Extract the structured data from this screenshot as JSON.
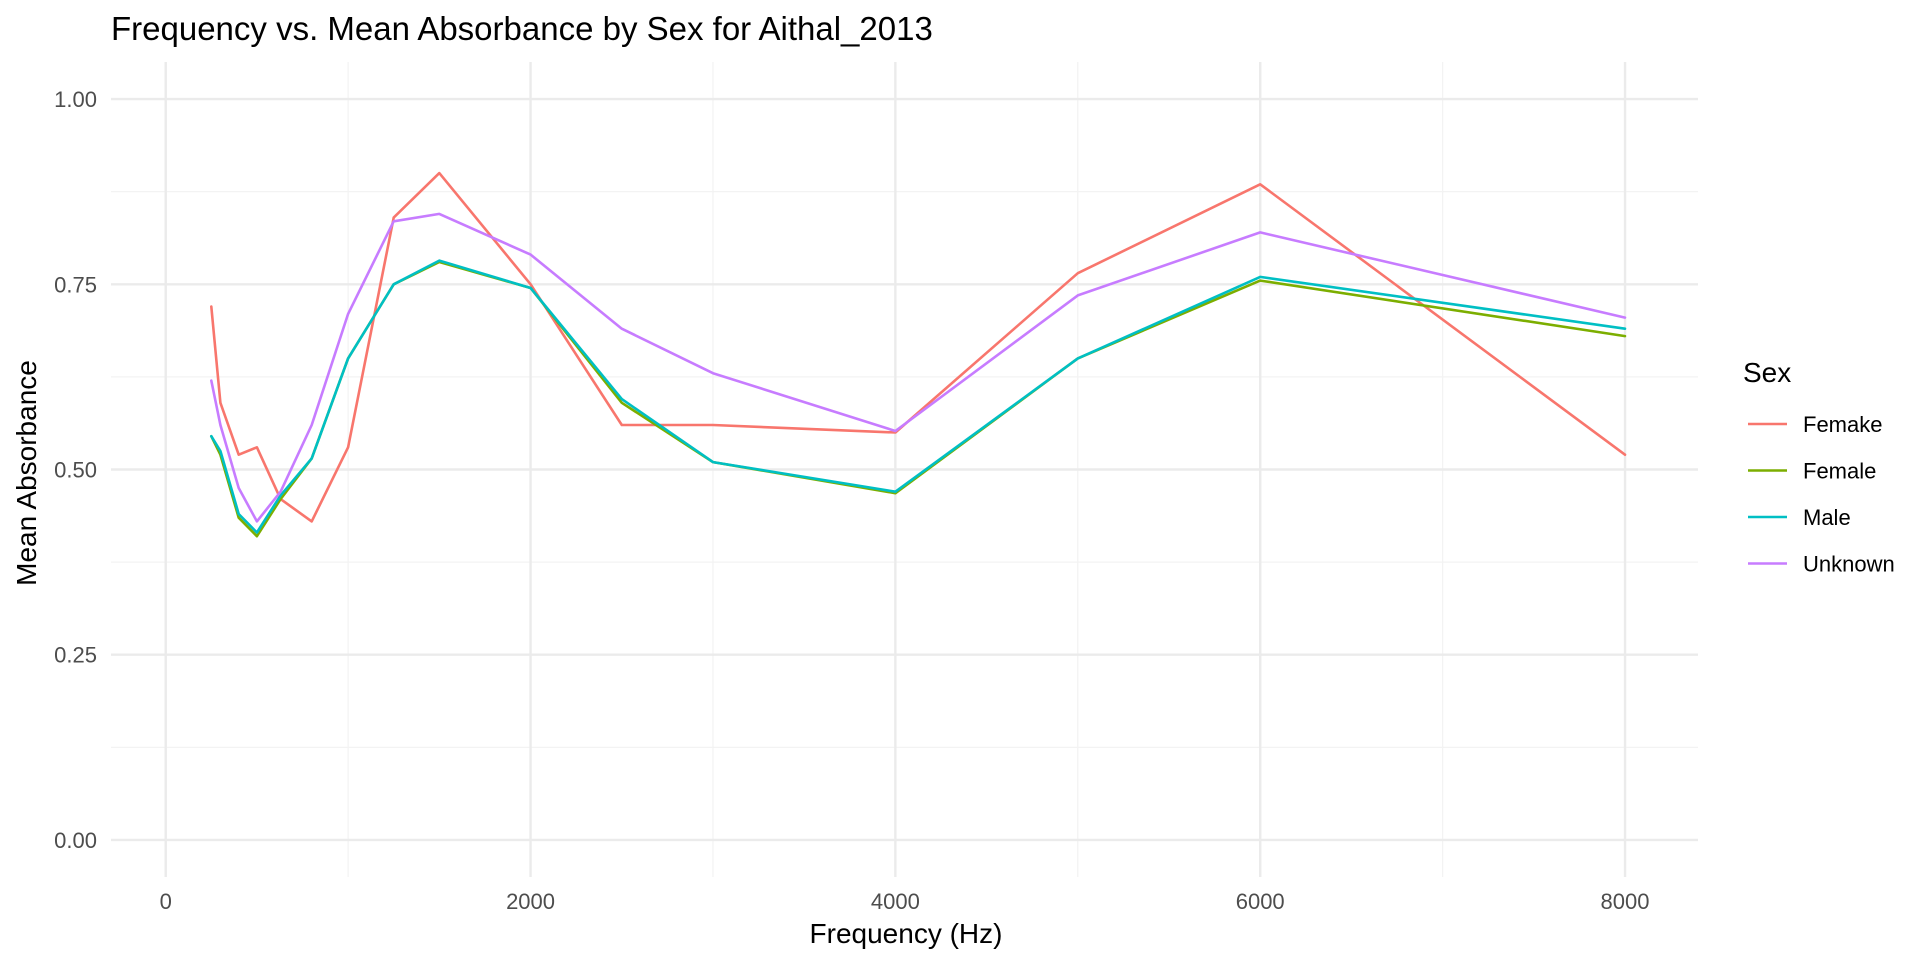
{
  "chart_data": {
    "type": "line",
    "title": "Frequency vs. Mean Absorbance by Sex for Aithal_2013",
    "xlabel": "Frequency (Hz)",
    "ylabel": "Mean Absorbance",
    "xlim": [
      -300,
      8400
    ],
    "ylim": [
      -0.05,
      1.05
    ],
    "x_ticks": [
      0,
      2000,
      4000,
      6000,
      8000
    ],
    "x_tick_labels": [
      "0",
      "2000",
      "4000",
      "6000",
      "8000"
    ],
    "x_minor_ticks": [
      1000,
      3000,
      5000,
      7000
    ],
    "y_ticks": [
      0,
      0.25,
      0.5,
      0.75,
      1.0
    ],
    "y_tick_labels": [
      "0.00",
      "0.25",
      "0.50",
      "0.75",
      "1.00"
    ],
    "y_minor_ticks": [
      0.125,
      0.375,
      0.625,
      0.875
    ],
    "grid": true,
    "legend": {
      "title": "Sex",
      "position": "right"
    },
    "x": [
      250,
      300,
      400,
      500,
      630,
      800,
      1000,
      1250,
      1500,
      2000,
      2500,
      3000,
      4000,
      5000,
      6000,
      8000
    ],
    "series": [
      {
        "name": "Femake",
        "color": "#F8766D",
        "values": [
          0.72,
          0.59,
          0.52,
          0.53,
          0.46,
          0.43,
          0.53,
          0.84,
          0.9,
          0.75,
          0.56,
          0.56,
          0.55,
          0.765,
          0.885,
          0.52
        ]
      },
      {
        "name": "Female",
        "color": "#7CAE00",
        "values": [
          0.545,
          0.52,
          0.435,
          0.41,
          0.46,
          0.515,
          0.65,
          0.75,
          0.78,
          0.745,
          0.59,
          0.51,
          0.468,
          0.65,
          0.755,
          0.68
        ]
      },
      {
        "name": "Male",
        "color": "#00BFC4",
        "values": [
          0.545,
          0.525,
          0.44,
          0.415,
          0.465,
          0.515,
          0.65,
          0.75,
          0.782,
          0.745,
          0.595,
          0.51,
          0.47,
          0.65,
          0.76,
          0.69
        ]
      },
      {
        "name": "Unknown",
        "color": "#C77CFF",
        "values": [
          0.62,
          0.56,
          0.475,
          0.43,
          0.47,
          0.56,
          0.71,
          0.835,
          0.845,
          0.79,
          0.69,
          0.63,
          0.552,
          0.735,
          0.82,
          0.705
        ]
      }
    ]
  }
}
